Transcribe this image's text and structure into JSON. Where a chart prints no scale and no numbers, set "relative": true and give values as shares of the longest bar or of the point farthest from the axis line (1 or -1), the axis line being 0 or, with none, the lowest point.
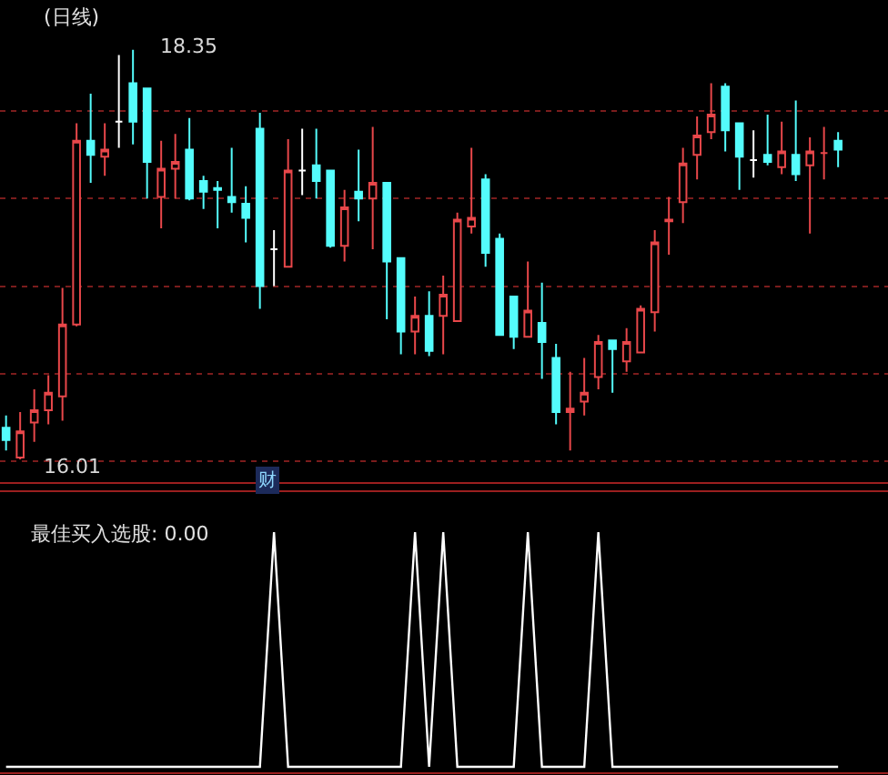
{
  "chart_data": [
    {
      "type": "candlestick",
      "title": "(日线)",
      "categories": [
        null,
        null,
        null,
        null,
        null,
        null,
        null,
        null,
        null,
        null,
        null,
        null,
        null,
        null,
        null,
        null,
        null,
        null,
        null,
        null,
        null,
        null,
        null,
        null,
        null,
        null,
        null,
        null,
        null,
        null,
        null,
        null,
        null,
        null,
        null,
        null,
        null,
        null,
        null,
        null,
        null,
        null,
        null,
        null,
        null,
        null,
        null,
        null,
        null,
        null,
        null,
        null,
        null,
        null,
        null,
        null,
        null,
        null,
        null,
        null
      ],
      "ohlc": [
        [
          16.19,
          16.26,
          16.06,
          16.12
        ],
        [
          16.02,
          16.28,
          16.01,
          16.17
        ],
        [
          16.22,
          16.41,
          16.11,
          16.29
        ],
        [
          16.29,
          16.49,
          16.21,
          16.39
        ],
        [
          16.37,
          16.99,
          16.23,
          16.78
        ],
        [
          16.78,
          17.93,
          16.77,
          17.83
        ],
        [
          17.83,
          18.1,
          17.59,
          17.75
        ],
        [
          17.74,
          17.93,
          17.63,
          17.78
        ],
        [
          17.94,
          18.32,
          17.79,
          17.94
        ],
        [
          18.16,
          18.35,
          17.81,
          17.94
        ],
        [
          18.13,
          18.13,
          17.5,
          17.71
        ],
        [
          17.51,
          17.83,
          17.33,
          17.67
        ],
        [
          17.67,
          17.87,
          17.5,
          17.71
        ],
        [
          17.78,
          17.96,
          17.49,
          17.5
        ],
        [
          17.6,
          17.63,
          17.44,
          17.54
        ],
        [
          17.56,
          17.6,
          17.33,
          17.55
        ],
        [
          17.51,
          17.79,
          17.42,
          17.48
        ],
        [
          17.47,
          17.57,
          17.25,
          17.39
        ],
        [
          17.9,
          17.99,
          16.87,
          17.0
        ],
        [
          17.21,
          17.32,
          17.0,
          17.21
        ],
        [
          17.11,
          17.84,
          17.11,
          17.66
        ],
        [
          17.66,
          17.9,
          17.52,
          17.66
        ],
        [
          17.69,
          17.9,
          17.5,
          17.6
        ],
        [
          17.66,
          17.66,
          17.22,
          17.23
        ],
        [
          17.23,
          17.55,
          17.14,
          17.45
        ],
        [
          17.54,
          17.78,
          17.37,
          17.5
        ],
        [
          17.5,
          17.91,
          17.21,
          17.59
        ],
        [
          17.59,
          17.59,
          16.81,
          17.14
        ],
        [
          17.16,
          17.16,
          16.61,
          16.74
        ],
        [
          16.74,
          16.94,
          16.61,
          16.83
        ],
        [
          16.83,
          16.97,
          16.6,
          16.63
        ],
        [
          16.83,
          17.06,
          16.61,
          16.95
        ],
        [
          16.8,
          17.42,
          16.8,
          17.38
        ],
        [
          17.34,
          17.79,
          17.3,
          17.39
        ],
        [
          17.61,
          17.64,
          17.11,
          17.19
        ],
        [
          17.27,
          17.3,
          16.72,
          16.72
        ],
        [
          16.94,
          16.94,
          16.64,
          16.71
        ],
        [
          16.71,
          17.14,
          16.71,
          16.86
        ],
        [
          16.79,
          17.02,
          16.47,
          16.68
        ],
        [
          16.59,
          16.67,
          16.21,
          16.28
        ],
        [
          16.28,
          16.51,
          16.06,
          16.3
        ],
        [
          16.34,
          16.59,
          16.26,
          16.39
        ],
        [
          16.48,
          16.72,
          16.41,
          16.68
        ],
        [
          16.69,
          16.69,
          16.39,
          16.64
        ],
        [
          16.57,
          16.76,
          16.51,
          16.68
        ],
        [
          16.62,
          16.89,
          16.62,
          16.87
        ],
        [
          16.85,
          17.32,
          16.74,
          17.25
        ],
        [
          17.37,
          17.51,
          17.18,
          17.38
        ],
        [
          17.48,
          17.79,
          17.36,
          17.7
        ],
        [
          17.75,
          17.97,
          17.61,
          17.86
        ],
        [
          17.88,
          18.16,
          17.84,
          17.98
        ],
        [
          18.14,
          18.16,
          17.77,
          17.89
        ],
        [
          17.93,
          17.93,
          17.55,
          17.74
        ],
        [
          17.72,
          17.89,
          17.62,
          17.72
        ],
        [
          17.75,
          17.98,
          17.69,
          17.71
        ],
        [
          17.68,
          17.94,
          17.64,
          17.77
        ],
        [
          17.75,
          18.06,
          17.6,
          17.64
        ],
        [
          17.69,
          17.85,
          17.3,
          17.77
        ],
        [
          17.76,
          17.91,
          17.61,
          17.76
        ],
        [
          17.83,
          17.88,
          17.68,
          17.78
        ]
      ],
      "colors": [
        "#54fcfc",
        "#e8474a",
        "#e8474a",
        "#e8474a",
        "#e8474a",
        "#e8474a",
        "#54fcfc",
        "#e8474a",
        "#ffffff",
        "#54fcfc",
        "#54fcfc",
        "#e8474a",
        "#e8474a",
        "#54fcfc",
        "#54fcfc",
        "#54fcfc",
        "#54fcfc",
        "#54fcfc",
        "#54fcfc",
        "#ffffff",
        "#e8474a",
        "#ffffff",
        "#54fcfc",
        "#54fcfc",
        "#e8474a",
        "#54fcfc",
        "#e8474a",
        "#54fcfc",
        "#54fcfc",
        "#e8474a",
        "#54fcfc",
        "#e8474a",
        "#e8474a",
        "#e8474a",
        "#54fcfc",
        "#54fcfc",
        "#54fcfc",
        "#e8474a",
        "#54fcfc",
        "#54fcfc",
        "#e8474a",
        "#e8474a",
        "#e8474a",
        "#54fcfc",
        "#e8474a",
        "#e8474a",
        "#e8474a",
        "#e8474a",
        "#e8474a",
        "#e8474a",
        "#e8474a",
        "#54fcfc",
        "#54fcfc",
        "#ffffff",
        "#54fcfc",
        "#e8474a",
        "#54fcfc",
        "#e8474a",
        "#e8474a",
        "#54fcfc"
      ],
      "yticks": [
        {
          "value": 16.0,
          "label": null
        },
        {
          "value": 16.5,
          "label": null
        },
        {
          "value": 17.0,
          "label": null
        },
        {
          "value": 17.5,
          "label": null
        },
        {
          "value": 18.0,
          "label": null
        }
      ],
      "grid": "y",
      "annotations": [
        "18.35",
        "16.01",
        "财"
      ]
    },
    {
      "type": "line",
      "title": "最佳买入选股: 0.00",
      "categories": [
        null,
        null,
        null,
        null,
        null,
        null,
        null,
        null,
        null,
        null,
        null,
        null,
        null,
        null,
        null,
        null,
        null,
        null,
        null,
        null,
        null,
        null,
        null,
        null,
        null,
        null,
        null,
        null,
        null,
        null,
        null,
        null,
        null,
        null,
        null,
        null,
        null,
        null,
        null,
        null,
        null,
        null,
        null,
        null,
        null,
        null,
        null,
        null,
        null,
        null,
        null,
        null,
        null,
        null,
        null,
        null,
        null,
        null,
        null,
        null
      ],
      "values": [
        0,
        0,
        0,
        0,
        0,
        0,
        0,
        0,
        0,
        0,
        0,
        0,
        0,
        0,
        0,
        0,
        0,
        0,
        0,
        1,
        0,
        0,
        0,
        0,
        0,
        0,
        0,
        0,
        0,
        1,
        0,
        1,
        0,
        0,
        0,
        0,
        0,
        1,
        0,
        0,
        0,
        0,
        1,
        0,
        0,
        0,
        0,
        0,
        0,
        0,
        0,
        0,
        0,
        0,
        0,
        0,
        0,
        0,
        0,
        0
      ],
      "color": "#ffffff",
      "relative": true
    }
  ]
}
